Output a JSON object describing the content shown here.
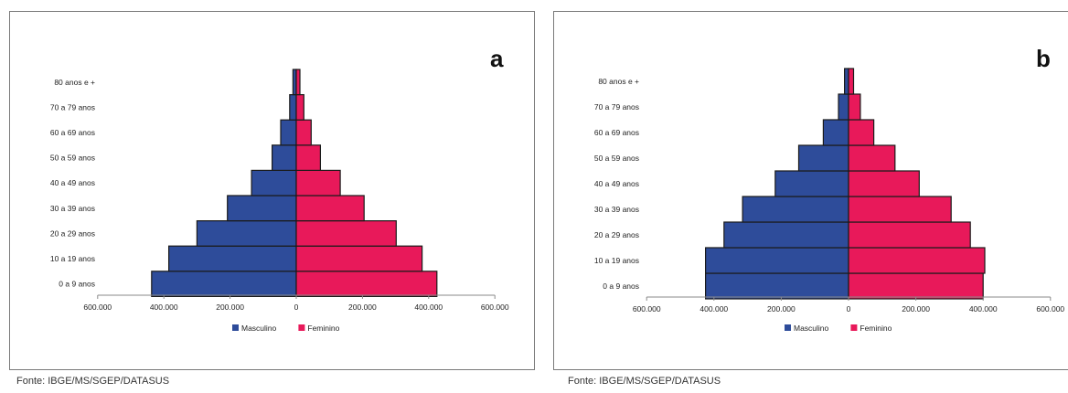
{
  "chart_data": [
    {
      "type": "bar",
      "orientation": "horizontal",
      "layout": "population-pyramid",
      "panel_label": "a",
      "categories": [
        "0 a 9 anos",
        "10 a 19 anos",
        "20 a 29 anos",
        "30 a 39 anos",
        "40 a 49 anos",
        "50 a 59 anos",
        "60 a 69 anos",
        "70 a 79 anos",
        "80 anos e +"
      ],
      "series": [
        {
          "name": "Masculino",
          "color": "#2E4C9A",
          "side": "left",
          "values": [
            437000,
            385000,
            300000,
            208000,
            135000,
            73000,
            47000,
            20000,
            10000
          ]
        },
        {
          "name": "Feminino",
          "color": "#E8195A",
          "side": "right",
          "values": [
            425000,
            380000,
            302000,
            205000,
            133000,
            73000,
            45000,
            23000,
            11000
          ]
        }
      ],
      "xlim": [
        -600000,
        600000
      ],
      "xticks": [
        -600000,
        -400000,
        -200000,
        0,
        200000,
        400000,
        600000
      ],
      "xtick_labels": [
        "600.000",
        "400.000",
        "200.000",
        "0",
        "200.000",
        "400.000",
        "600.000"
      ],
      "grid": false,
      "legend_position": "bottom",
      "source": "Fonte: IBGE/MS/SGEP/DATASUS"
    },
    {
      "type": "bar",
      "orientation": "horizontal",
      "layout": "population-pyramid",
      "panel_label": "b",
      "categories": [
        "0 a 9 anos",
        "10 a 19 anos",
        "20 a 29 anos",
        "30 a 39 anos",
        "40 a 49 anos",
        "50 a 59 anos",
        "60 a 69 anos",
        "70 a 79 anos",
        "80 anos e +"
      ],
      "series": [
        {
          "name": "Masculino",
          "color": "#2E4C9A",
          "side": "left",
          "values": [
            425000,
            425000,
            370000,
            315000,
            218000,
            148000,
            75000,
            30000,
            12000
          ]
        },
        {
          "name": "Feminino",
          "color": "#E8195A",
          "side": "right",
          "values": [
            400000,
            405000,
            362000,
            305000,
            210000,
            138000,
            75000,
            35000,
            15000
          ]
        }
      ],
      "xlim": [
        -600000,
        600000
      ],
      "xticks": [
        -600000,
        -400000,
        -200000,
        0,
        200000,
        400000,
        600000
      ],
      "xtick_labels": [
        "600.000",
        "400.000",
        "200.000",
        "0",
        "200.000",
        "400.000",
        "600.000"
      ],
      "grid": false,
      "legend_position": "bottom",
      "source": "Fonte: IBGE/MS/SGEP/DATASUS"
    }
  ]
}
